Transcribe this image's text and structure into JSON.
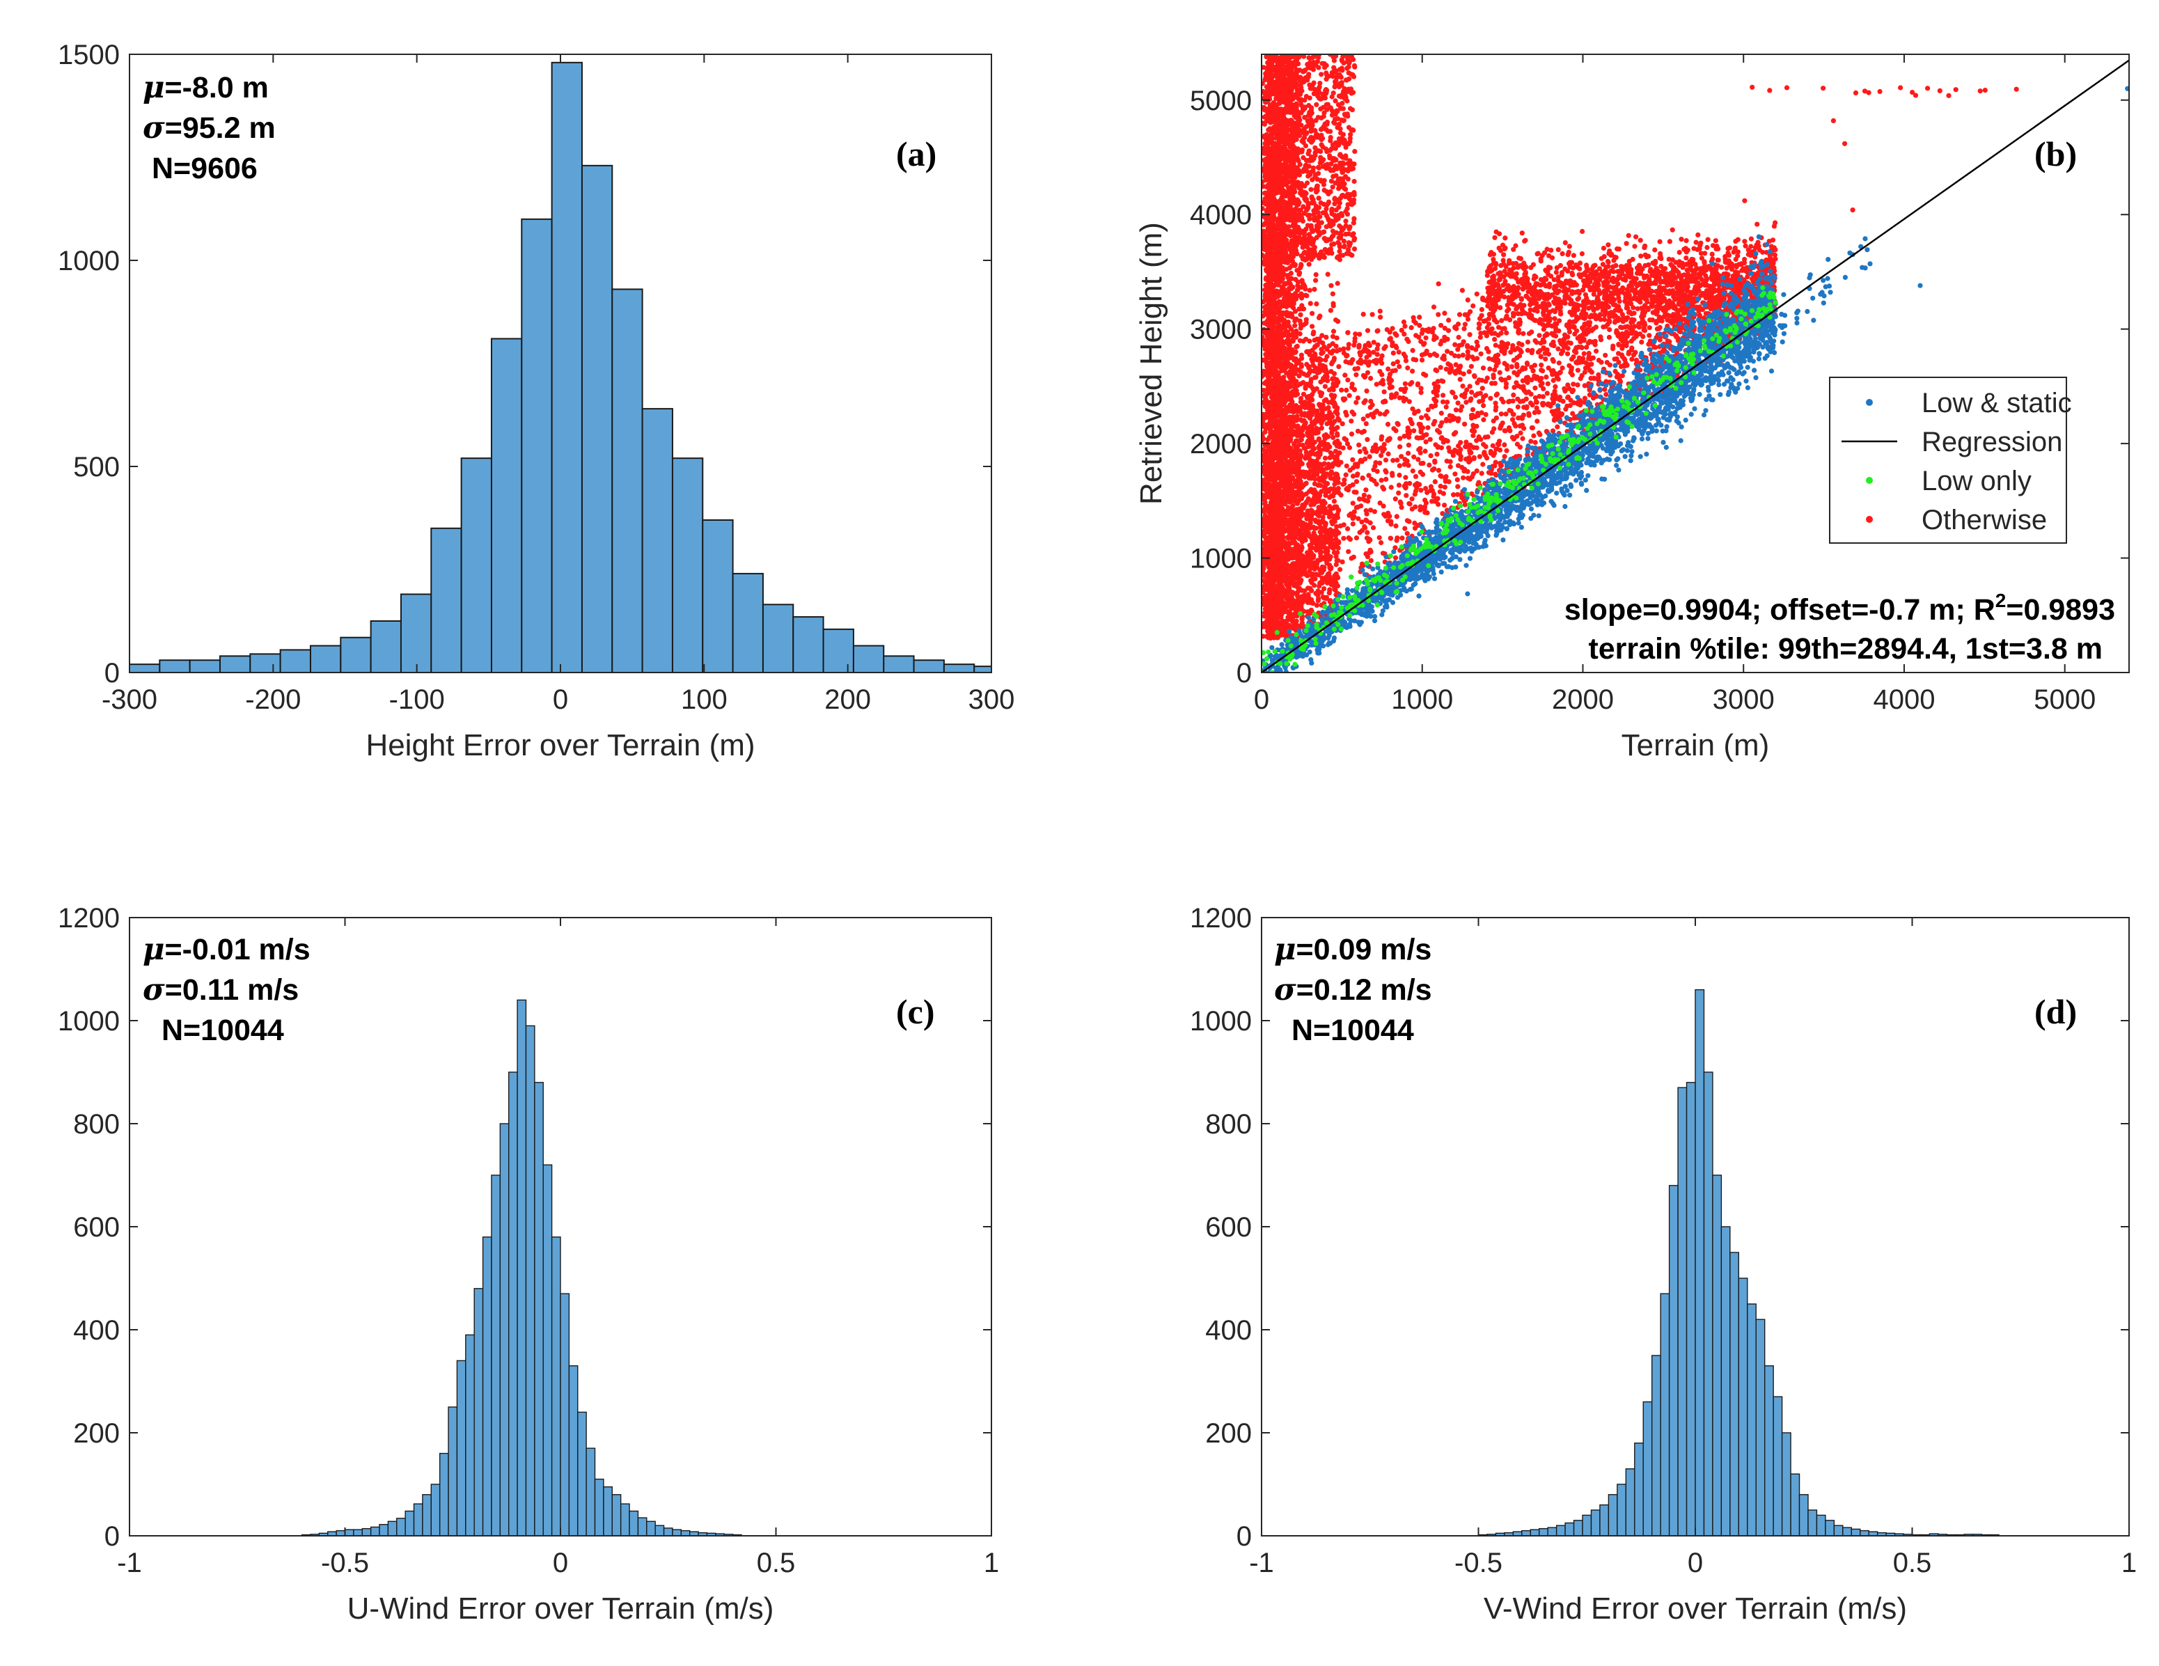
{
  "colors": {
    "bar_fill": "#5fa3d6",
    "bar_stroke": "#1a1a1a",
    "low_static": "#1f77c4",
    "low_only": "#22ee22",
    "otherwise": "#ff1a1a",
    "regression": "#000000"
  },
  "chart_data": [
    {
      "type": "bar",
      "panel_label": "(a)",
      "xlabel": "Height Error over Terrain (m)",
      "ylabel": "",
      "xlim": [
        -300,
        300
      ],
      "ylim": [
        0,
        1500
      ],
      "xticks": [
        "-300",
        "-200",
        "-100",
        "0",
        "100",
        "200",
        "300"
      ],
      "yticks": [
        "0",
        "500",
        "1000",
        "1500"
      ],
      "stats": [
        "=-8.0 m",
        "=95.2 m",
        "N=9606"
      ],
      "bin_edges": [
        -300,
        -279,
        -258,
        -237,
        -216,
        -195,
        -174,
        -153,
        -132,
        -111,
        -90,
        -69,
        -48,
        -27,
        -6,
        15,
        36,
        57,
        78,
        99,
        120,
        141,
        162,
        183,
        204,
        225,
        246,
        267,
        288,
        300
      ],
      "values": [
        20,
        30,
        30,
        40,
        45,
        55,
        65,
        85,
        125,
        190,
        350,
        520,
        810,
        1100,
        1480,
        1230,
        930,
        640,
        520,
        370,
        240,
        165,
        135,
        105,
        65,
        40,
        30,
        20,
        15
      ]
    },
    {
      "type": "scatter",
      "panel_label": "(b)",
      "xlabel": "Terrain (m)",
      "ylabel": "Retrieved Height (m)",
      "xlim": [
        0,
        5400
      ],
      "ylim": [
        0,
        5400
      ],
      "xticks": [
        "0",
        "1000",
        "2000",
        "3000",
        "4000",
        "5000"
      ],
      "yticks": [
        "0",
        "1000",
        "2000",
        "3000",
        "4000",
        "5000"
      ],
      "legend_position": "right",
      "legend": [
        "Low & static",
        "Regression",
        "Low only",
        "Otherwise"
      ],
      "regression": {
        "slope": 0.9904,
        "offset": -0.7
      },
      "annotation_line1_prefix": "slope=0.9904; offset=-0.7 m; R",
      "annotation_r2_exp": "2",
      "annotation_line1_suffix": "=0.9893",
      "annotation_line2": "terrain %tile: 99th=2894.4, 1st=3.8 m",
      "series": [
        {
          "name": "Low & static",
          "description": "dense band along y=x from 0 to ~3800 m"
        },
        {
          "name": "Low only",
          "description": "sparse points along y=x from 0 to ~3200 m"
        },
        {
          "name": "Otherwise",
          "description": "vertical band at x<600 m up to 5400 m, cloud 1000-3900 m over x 300-3200 m, row near y=5100 m at x 3000-4700 m"
        }
      ],
      "extra_points": [
        [
          3630,
          4600
        ],
        [
          4100,
          3380
        ],
        [
          3700,
          4000
        ],
        [
          5400,
          5100
        ]
      ]
    },
    {
      "type": "bar",
      "panel_label": "(c)",
      "xlabel": "U-Wind Error over Terrain (m/s)",
      "ylabel": "",
      "xlim": [
        -1,
        1
      ],
      "ylim": [
        0,
        1200
      ],
      "xticks": [
        "-1",
        "-0.5",
        "0",
        "0.5",
        "1"
      ],
      "yticks": [
        "0",
        "200",
        "400",
        "600",
        "800",
        "1000",
        "1200"
      ],
      "stats": [
        "=-0.01 m/s",
        "=0.11 m/s",
        "N=10044"
      ],
      "bin_start": -0.6,
      "bin_width": 0.02,
      "values": [
        2,
        3,
        5,
        8,
        10,
        12,
        12,
        14,
        17,
        22,
        28,
        34,
        48,
        62,
        80,
        100,
        160,
        250,
        340,
        390,
        480,
        580,
        700,
        800,
        900,
        1040,
        990,
        880,
        720,
        580,
        470,
        330,
        240,
        170,
        110,
        95,
        80,
        62,
        48,
        35,
        28,
        20,
        15,
        12,
        10,
        8,
        6,
        5,
        4,
        3,
        2
      ]
    },
    {
      "type": "bar",
      "panel_label": "(d)",
      "xlabel": "V-Wind Error over Terrain (m/s)",
      "ylabel": "",
      "xlim": [
        -1,
        1
      ],
      "ylim": [
        0,
        1200
      ],
      "xticks": [
        "-1",
        "-0.5",
        "0",
        "0.5",
        "1"
      ],
      "yticks": [
        "0",
        "200",
        "400",
        "600",
        "800",
        "1000",
        "1200"
      ],
      "stats": [
        "=0.09 m/s",
        "=0.12 m/s",
        "N=10044"
      ],
      "bin_start": -0.5,
      "bin_width": 0.02,
      "values": [
        2,
        3,
        5,
        6,
        8,
        10,
        12,
        14,
        16,
        20,
        25,
        30,
        40,
        50,
        60,
        80,
        100,
        130,
        180,
        260,
        350,
        470,
        680,
        870,
        880,
        1060,
        900,
        700,
        600,
        550,
        500,
        450,
        420,
        330,
        270,
        200,
        120,
        80,
        50,
        40,
        30,
        20,
        16,
        13,
        10,
        8,
        6,
        5,
        4,
        3,
        2,
        2,
        4,
        3,
        2,
        2,
        3,
        3,
        2,
        2
      ]
    }
  ]
}
